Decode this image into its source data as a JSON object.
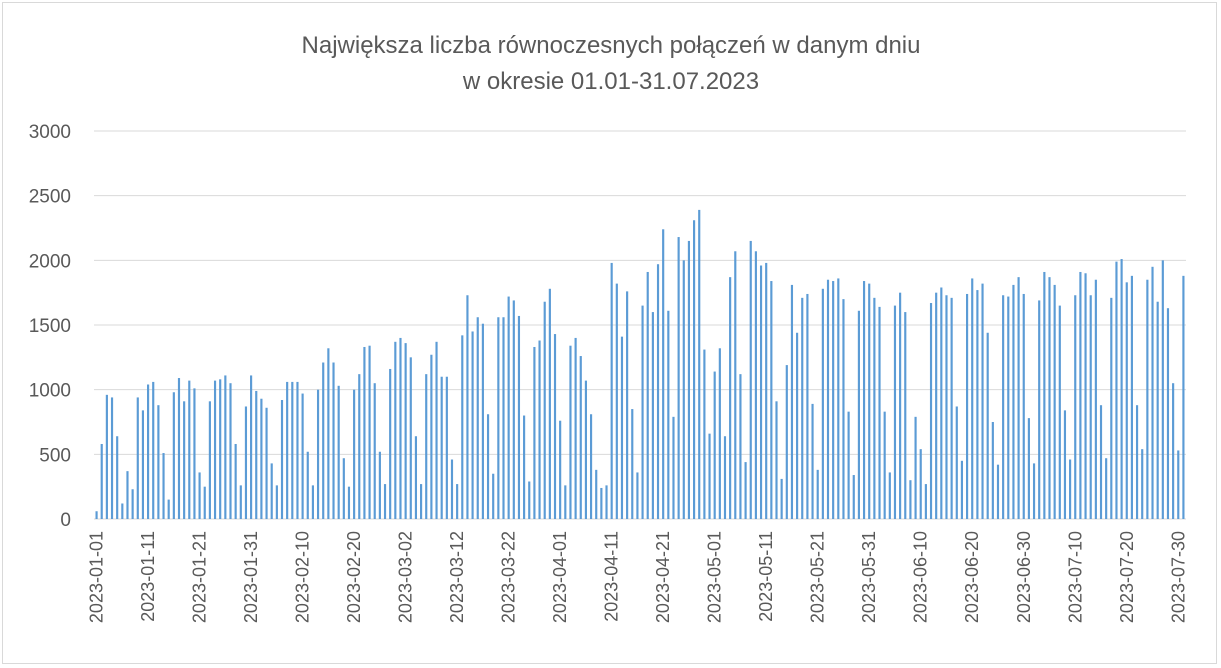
{
  "chart_data": {
    "type": "bar",
    "title": [
      "Największa liczba równoczesnych połączeń w danym dniu",
      "w okresie 01.01-31.07.2023"
    ],
    "xlabel": "",
    "ylabel": "",
    "ylim": [
      0,
      3000
    ],
    "yticks": [
      0,
      500,
      1000,
      1500,
      2000,
      2500,
      3000
    ],
    "grid": true,
    "legend": "none",
    "bar_color": "#5b9bd5",
    "grid_color": "#d9d9d9",
    "x_tick_labels": [
      "2023-01-01",
      "2023-01-11",
      "2023-01-21",
      "2023-01-31",
      "2023-02-10",
      "2023-02-20",
      "2023-03-02",
      "2023-03-12",
      "2023-03-22",
      "2023-04-01",
      "2023-04-11",
      "2023-04-21",
      "2023-05-01",
      "2023-05-11",
      "2023-05-21",
      "2023-05-31",
      "2023-06-10",
      "2023-06-20",
      "2023-06-30",
      "2023-07-10",
      "2023-07-20",
      "2023-07-30"
    ],
    "x_start": "2023-01-01",
    "x_end": "2023-07-31",
    "x_step_days": 1,
    "values": [
      60,
      580,
      960,
      940,
      640,
      120,
      370,
      230,
      940,
      840,
      1040,
      1060,
      880,
      510,
      150,
      980,
      1090,
      910,
      1070,
      1010,
      360,
      250,
      910,
      1070,
      1080,
      1110,
      1050,
      580,
      260,
      870,
      1110,
      990,
      930,
      860,
      430,
      260,
      920,
      1060,
      1060,
      1060,
      970,
      520,
      260,
      1000,
      1210,
      1320,
      1210,
      1030,
      470,
      250,
      1000,
      1120,
      1330,
      1340,
      1050,
      520,
      270,
      1160,
      1370,
      1400,
      1360,
      1250,
      640,
      270,
      1120,
      1270,
      1370,
      1100,
      1100,
      460,
      270,
      1420,
      1730,
      1450,
      1560,
      1510,
      810,
      350,
      1560,
      1560,
      1720,
      1690,
      1570,
      800,
      290,
      1330,
      1380,
      1680,
      1780,
      1430,
      760,
      260,
      1340,
      1400,
      1260,
      1070,
      810,
      380,
      240,
      260,
      1980,
      1820,
      1410,
      1760,
      850,
      360,
      1650,
      1910,
      1600,
      1970,
      2240,
      1610,
      790,
      2180,
      2000,
      2150,
      2310,
      2390,
      1310,
      660,
      1140,
      1320,
      640,
      1870,
      2070,
      1120,
      440,
      2150,
      2070,
      1960,
      1980,
      1840,
      910,
      310,
      1190,
      1810,
      1440,
      1710,
      1740,
      890,
      380,
      1780,
      1850,
      1840,
      1860,
      1700,
      830,
      340,
      1610,
      1840,
      1820,
      1710,
      1640,
      830,
      360,
      1650,
      1750,
      1600,
      300,
      790,
      540,
      270,
      1670,
      1750,
      1790,
      1730,
      1710,
      870,
      450,
      1740,
      1860,
      1770,
      1820,
      1440,
      750,
      420,
      1730,
      1720,
      1810,
      1870,
      1740,
      780,
      430,
      1690,
      1910,
      1870,
      1810,
      1650,
      840,
      460,
      1730,
      1910,
      1900,
      1730,
      1850,
      880,
      470,
      1710,
      1990,
      2010,
      1830,
      1880,
      880,
      540,
      1850,
      1950,
      1680,
      2000,
      1630,
      1050,
      530,
      1880
    ]
  }
}
